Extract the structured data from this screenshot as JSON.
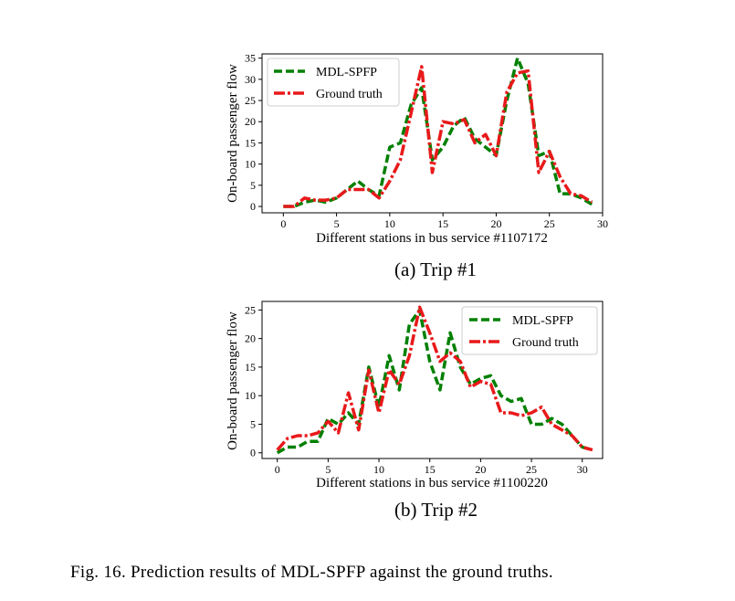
{
  "chart_data": [
    {
      "type": "line",
      "ylabel": "On-board passenger flow",
      "xlabel": "Different stations in bus service #1107172",
      "xlim": [
        -2,
        30
      ],
      "ylim": [
        -1.5,
        36
      ],
      "xticks": [
        "0",
        "5",
        "10",
        "15",
        "20",
        "25",
        "30"
      ],
      "yticks": [
        "0",
        "5",
        "10",
        "15",
        "20",
        "25",
        "30",
        "35"
      ],
      "legend_position": "upper-left",
      "series": [
        {
          "name": "MDL-SPFP",
          "style": "dashed",
          "color": "#008000",
          "x": [
            0,
            1,
            2,
            3,
            4,
            5,
            6,
            7,
            8,
            9,
            10,
            11,
            12,
            13,
            14,
            15,
            16,
            17,
            18,
            19,
            20,
            21,
            22,
            23,
            24,
            25,
            26,
            27,
            28,
            29
          ],
          "values": [
            0,
            0,
            1,
            1.5,
            1,
            2,
            4,
            6,
            4,
            2.5,
            14,
            15,
            24,
            28,
            11,
            14,
            19,
            21,
            16,
            14,
            12,
            25,
            35,
            29,
            12,
            13,
            3,
            3,
            2,
            0.5
          ]
        },
        {
          "name": "Ground truth",
          "style": "dashdot",
          "color": "#e8191a",
          "x": [
            0,
            1,
            2,
            3,
            4,
            5,
            6,
            7,
            8,
            9,
            10,
            11,
            12,
            13,
            14,
            15,
            16,
            17,
            18,
            19,
            20,
            21,
            22,
            23,
            24,
            25,
            26,
            27,
            28,
            29
          ],
          "values": [
            0,
            0,
            2,
            1.5,
            1.5,
            2,
            4,
            4,
            4,
            2,
            6,
            11,
            22,
            33,
            8,
            20,
            19.5,
            20.5,
            15,
            17,
            12,
            27,
            31.5,
            32,
            8,
            13,
            7,
            3,
            2.5,
            1
          ]
        }
      ]
    },
    {
      "type": "line",
      "ylabel": "On-board passenger flow",
      "xlabel": "Different stations in bus service #1100220",
      "xlim": [
        -1.5,
        32
      ],
      "ylim": [
        -1,
        26.5
      ],
      "xticks": [
        "0",
        "5",
        "10",
        "15",
        "20",
        "25",
        "30"
      ],
      "yticks": [
        "0",
        "5",
        "10",
        "15",
        "20",
        "25"
      ],
      "legend_position": "upper-right",
      "series": [
        {
          "name": "MDL-SPFP",
          "style": "dashed",
          "color": "#008000",
          "x": [
            0,
            1,
            2,
            3,
            4,
            5,
            6,
            7,
            8,
            9,
            10,
            11,
            12,
            13,
            14,
            15,
            16,
            17,
            18,
            19,
            20,
            21,
            22,
            23,
            24,
            25,
            26,
            27,
            28,
            29,
            30,
            31
          ],
          "values": [
            0,
            1,
            1,
            2,
            2,
            6,
            5,
            7,
            5,
            15,
            8,
            17,
            11,
            22.5,
            25,
            16,
            11,
            21,
            15,
            12,
            13,
            13.5,
            10,
            9,
            9.5,
            5,
            5,
            6,
            5,
            3,
            1,
            0.5
          ]
        },
        {
          "name": "Ground truth",
          "style": "dashdot",
          "color": "#e8191a",
          "x": [
            0,
            1,
            2,
            3,
            4,
            5,
            6,
            7,
            8,
            9,
            10,
            11,
            12,
            13,
            14,
            15,
            16,
            17,
            18,
            19,
            20,
            21,
            22,
            23,
            24,
            25,
            26,
            27,
            28,
            29,
            30,
            31
          ],
          "values": [
            0.5,
            2.5,
            3,
            3,
            3.5,
            5.5,
            3.5,
            10.5,
            4,
            14.5,
            7,
            14.5,
            12,
            17,
            25.5,
            21,
            16,
            17.5,
            16,
            11.5,
            12.5,
            12,
            7,
            7,
            6.5,
            7,
            8,
            5,
            4,
            3,
            1,
            0.5
          ]
        }
      ]
    }
  ],
  "subcaptions": {
    "a": "(a) Trip #1",
    "b": "(b) Trip #2"
  },
  "figure_caption": "Fig. 16.   Prediction results of MDL-SPFP against the ground truths."
}
